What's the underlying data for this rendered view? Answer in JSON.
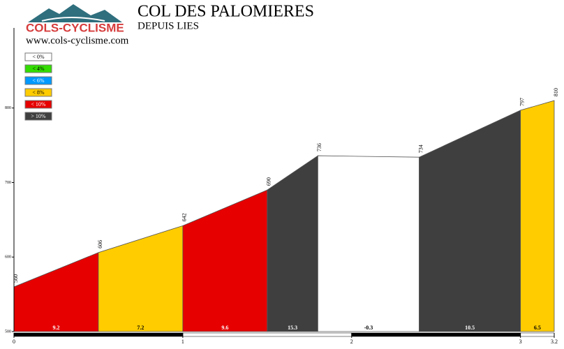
{
  "chart_data": {
    "type": "profile",
    "logo": "COLS-CYCLISME",
    "title": "COL DES PALOMIERES",
    "subtitle": "DEPUIS LIES",
    "site": "www.cols-cyclisme.com",
    "x": [
      0,
      0.5,
      1,
      1.5,
      1.8,
      2.4,
      3,
      3.2
    ],
    "values": [
      560,
      606,
      642,
      690,
      736,
      734,
      797,
      810
    ],
    "grades": [
      9.2,
      7.2,
      9.6,
      15.3,
      -0.3,
      10.5,
      6.5
    ],
    "segment_colors": [
      "#e60000",
      "#ffcc00",
      "#e60000",
      "#3f3f3f",
      "#ffffff",
      "#3f3f3f",
      "#ffcc00"
    ],
    "legend": [
      {
        "label": "< 0%",
        "color": "#ffffff"
      },
      {
        "label": "< 4%",
        "color": "#33dd00"
      },
      {
        "label": "< 6%",
        "color": "#0099ff"
      },
      {
        "label": "< 8%",
        "color": "#ffcc00"
      },
      {
        "label": "< 10%",
        "color": "#e60000"
      },
      {
        "label": "> 10%",
        "color": "#3f3f3f"
      }
    ],
    "xlim": [
      0,
      3.2
    ],
    "xticks": [
      0,
      1,
      2,
      3,
      3.2
    ],
    "ylim": [
      500,
      900
    ],
    "yticks": [
      500,
      600,
      700,
      800
    ]
  }
}
